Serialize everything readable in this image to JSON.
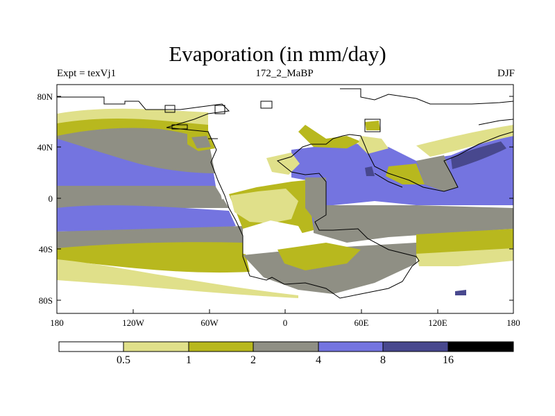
{
  "title": "Evaporation (in mm/day)",
  "subtitle_left": "Expt = texVj1",
  "subtitle_center": "172_2_MaBP",
  "subtitle_right": "DJF",
  "axes": {
    "y_ticks": [
      "80N",
      "40N",
      "0",
      "40S",
      "80S"
    ],
    "x_ticks": [
      "180",
      "120W",
      "60W",
      "0",
      "60E",
      "120E",
      "180"
    ]
  },
  "legend": {
    "labels": [
      "0.5",
      "1",
      "2",
      "4",
      "8",
      "16"
    ],
    "colors": [
      "#ffffff",
      "#e0e08a",
      "#b8b81e",
      "#8f8f84",
      "#7474e0",
      "#48488e",
      "#000000"
    ]
  }
}
